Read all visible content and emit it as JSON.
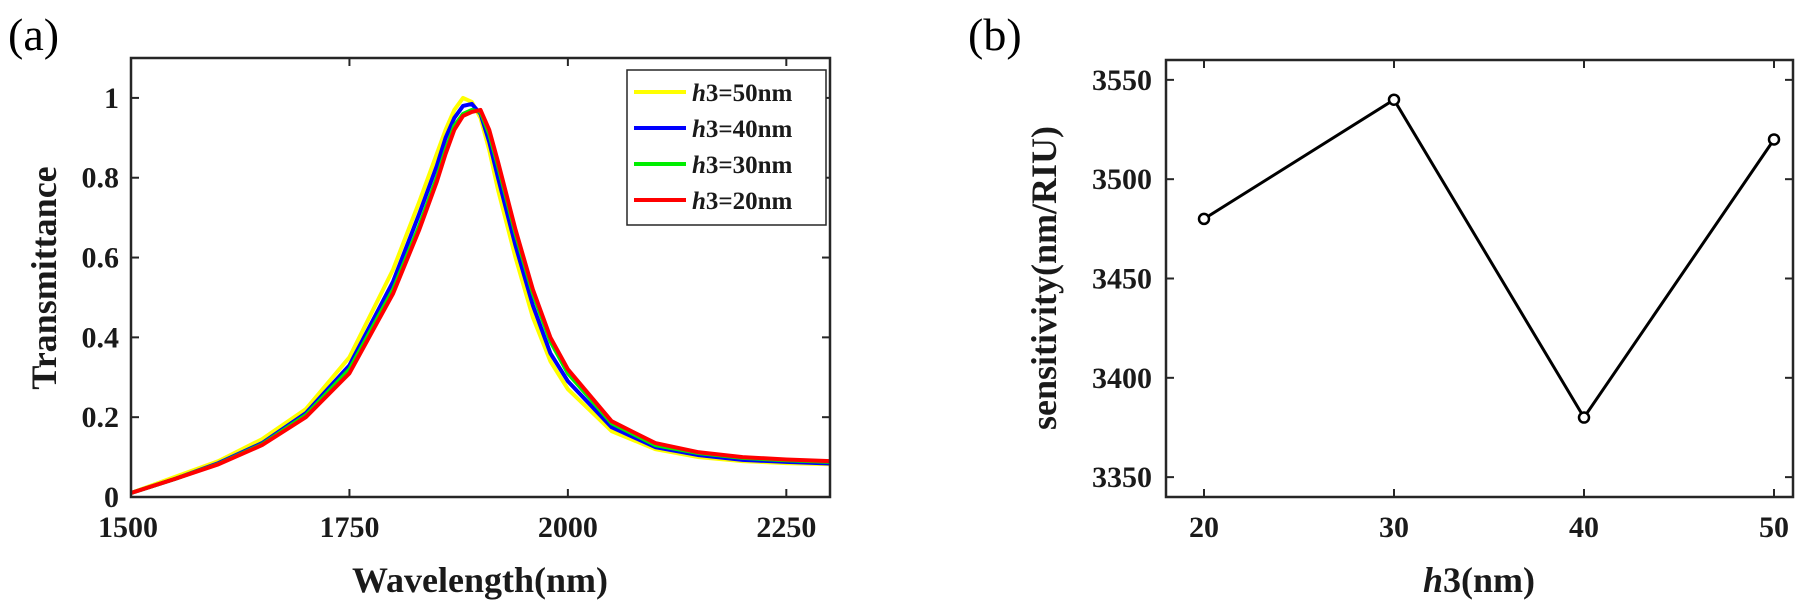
{
  "chart_data": [
    {
      "panel": "(a)",
      "type": "line",
      "xlabel": "Wavelength(nm)",
      "ylabel": "Transmittance",
      "xlim": [
        1500,
        2300
      ],
      "ylim": [
        0,
        1.1
      ],
      "xticks": [
        "1500",
        "1750",
        "2000",
        "2250"
      ],
      "yticks": [
        "0",
        "0.2",
        "0.4",
        "0.6",
        "0.8",
        "1"
      ],
      "legend_position": "top-right",
      "grid": false,
      "x": [
        1500,
        1550,
        1600,
        1650,
        1700,
        1750,
        1800,
        1830,
        1850,
        1860,
        1870,
        1880,
        1890,
        1900,
        1910,
        1920,
        1940,
        1960,
        1980,
        2000,
        2050,
        2100,
        2150,
        2200,
        2250,
        2300
      ],
      "series": [
        {
          "name": "h3=50nm",
          "var": "h",
          "rest": "3=50nm",
          "color": "#ffff00",
          "values": [
            0.01,
            0.05,
            0.09,
            0.145,
            0.22,
            0.35,
            0.57,
            0.74,
            0.86,
            0.92,
            0.97,
            1.0,
            0.99,
            0.95,
            0.87,
            0.77,
            0.6,
            0.45,
            0.34,
            0.27,
            0.165,
            0.12,
            0.1,
            0.09,
            0.085,
            0.082
          ]
        },
        {
          "name": "h3=40nm",
          "var": "h",
          "rest": "3=40nm",
          "color": "#0000ff",
          "values": [
            0.01,
            0.045,
            0.085,
            0.135,
            0.21,
            0.33,
            0.54,
            0.71,
            0.83,
            0.9,
            0.95,
            0.98,
            0.985,
            0.96,
            0.89,
            0.8,
            0.63,
            0.48,
            0.36,
            0.29,
            0.175,
            0.125,
            0.105,
            0.093,
            0.088,
            0.084
          ]
        },
        {
          "name": "h3=30nm",
          "var": "h",
          "rest": "3=30nm",
          "color": "#00ee00",
          "values": [
            0.01,
            0.045,
            0.083,
            0.132,
            0.205,
            0.32,
            0.52,
            0.68,
            0.8,
            0.87,
            0.93,
            0.96,
            0.97,
            0.965,
            0.91,
            0.83,
            0.66,
            0.51,
            0.39,
            0.31,
            0.185,
            0.13,
            0.11,
            0.098,
            0.092,
            0.088
          ]
        },
        {
          "name": "h3=20nm",
          "var": "h",
          "rest": "3=20nm",
          "color": "#ff0000",
          "values": [
            0.01,
            0.045,
            0.082,
            0.13,
            0.2,
            0.31,
            0.51,
            0.67,
            0.79,
            0.86,
            0.92,
            0.955,
            0.965,
            0.97,
            0.92,
            0.84,
            0.67,
            0.52,
            0.4,
            0.32,
            0.19,
            0.135,
            0.112,
            0.1,
            0.094,
            0.09
          ]
        }
      ]
    },
    {
      "panel": "(b)",
      "type": "line",
      "xlabel_var": "h",
      "xlabel_rest": "3(nm)",
      "ylabel": "sensitivity(nm/RIU)",
      "xlim": [
        18,
        51
      ],
      "ylim": [
        3340,
        3560
      ],
      "xticks": [
        "20",
        "30",
        "40",
        "50"
      ],
      "yticks": [
        "3350",
        "3400",
        "3450",
        "3500",
        "3550"
      ],
      "grid": false,
      "x": [
        20,
        30,
        40,
        50
      ],
      "values": [
        3480,
        3540,
        3380,
        3520
      ],
      "color": "#000000",
      "marker": "circle"
    }
  ]
}
